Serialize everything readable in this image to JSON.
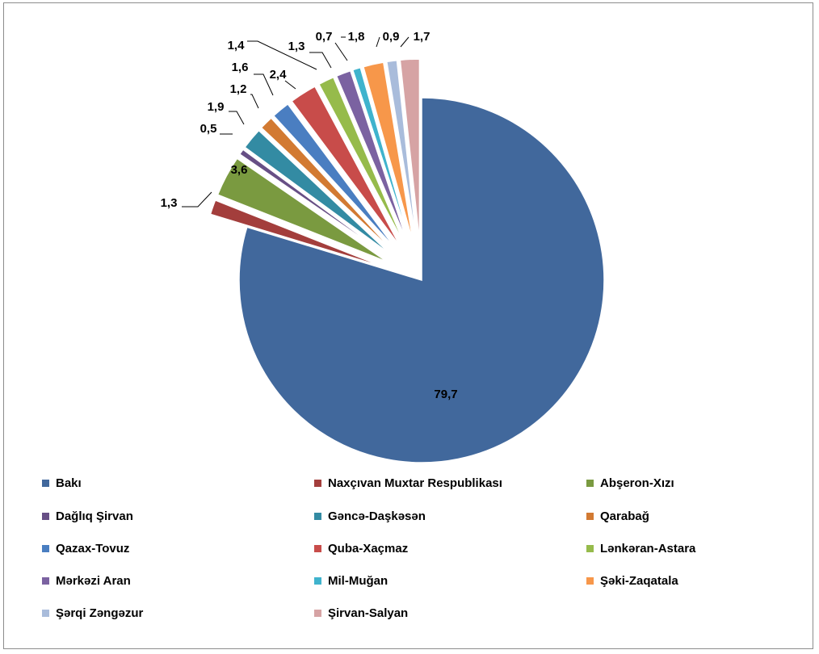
{
  "chart_data": {
    "type": "pie",
    "exploded": true,
    "categories": [
      "Bakı",
      "Naxçıvan Muxtar Respublikası",
      "Abşeron-Xızı",
      "Dağlıq Şirvan",
      "Gəncə-Daşkəsən",
      "Qarabağ",
      "Qazax-Tovuz",
      "Quba-Xaçmaz",
      "Lənkəran-Astara",
      "Mərkəzi Aran",
      "Mil-Muğan",
      "Şəki-Zaqatala",
      "Şərqi Zəngəzur",
      "Şirvan-Salyan"
    ],
    "values": [
      79.7,
      1.3,
      3.6,
      0.5,
      1.9,
      1.2,
      1.6,
      2.4,
      1.4,
      1.3,
      0.7,
      1.8,
      0.9,
      1.7
    ],
    "data_labels": [
      "79,7",
      "1,3",
      "3,6",
      "0,5",
      "1,9",
      "1,2",
      "1,6",
      "2,4",
      "1,4",
      "1,3",
      "0,7",
      "1,8",
      "0,9",
      "1,7"
    ],
    "colors": [
      "#41689c",
      "#a33e3c",
      "#7a9a40",
      "#674f85",
      "#338ba3",
      "#d27a32",
      "#4a7ec1",
      "#c84c4a",
      "#96bb4b",
      "#7b62a1",
      "#3fb3cd",
      "#f7974a",
      "#a9bcdb",
      "#d6a3a4"
    ],
    "legend_position": "bottom"
  }
}
